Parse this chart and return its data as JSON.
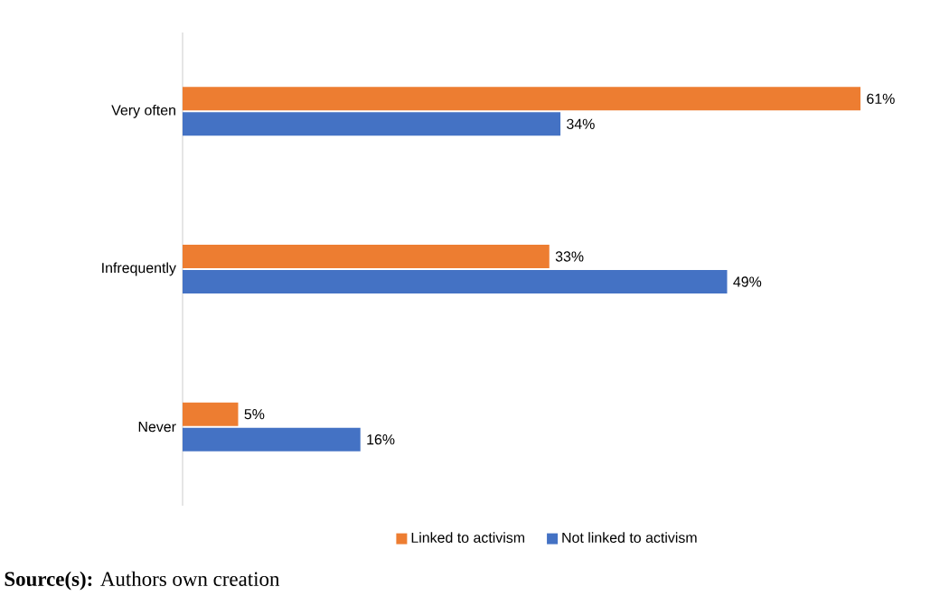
{
  "chart_data": {
    "type": "bar",
    "orientation": "horizontal",
    "categories": [
      "Very often",
      "Infrequently",
      "Never"
    ],
    "series": [
      {
        "name": "Linked to activism",
        "color": "#ed7d31",
        "values": [
          61,
          33,
          5
        ],
        "value_labels": [
          "61%",
          "33%",
          "5%"
        ]
      },
      {
        "name": "Not linked to activism",
        "color": "#4472c4",
        "values": [
          34,
          49,
          16
        ],
        "value_labels": [
          "34%",
          "49%",
          "16%"
        ]
      }
    ],
    "legend": "bottom",
    "grid": false,
    "annotations": [
      "**Source(s):** Authors own creation"
    ]
  }
}
